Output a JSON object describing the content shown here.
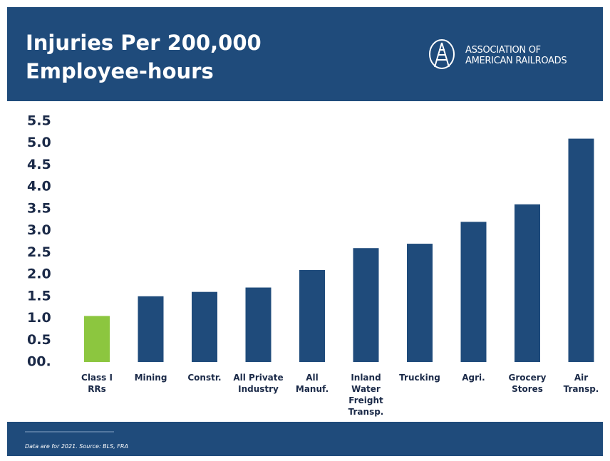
{
  "chart_data": {
    "type": "bar",
    "title": "Injuries Per 200,000\nEmployee-hours",
    "logo_text": "ASSOCIATION OF\nAMERICAN RAILROADS",
    "footnote": "Data are for 2021. Source: BLS, FRA",
    "categories": [
      "Class I\nRRs",
      "Mining",
      "Constr.",
      "All Private\nIndustry",
      "All\nManuf.",
      "Inland\nWater\nFreight\nTransp.",
      "Trucking",
      "Agri.",
      "Grocery\nStores",
      "Air\nTransp."
    ],
    "values": [
      1.05,
      1.5,
      1.6,
      1.7,
      2.1,
      2.6,
      2.7,
      3.2,
      3.6,
      5.1
    ],
    "colors": [
      "#8cc63f",
      "#1f4b7b",
      "#1f4b7b",
      "#1f4b7b",
      "#1f4b7b",
      "#1f4b7b",
      "#1f4b7b",
      "#1f4b7b",
      "#1f4b7b",
      "#1f4b7b"
    ],
    "ylim": [
      0,
      5.5
    ],
    "yticks": [
      {
        "value": 0,
        "label": "00."
      },
      0.5,
      {
        "value": 1,
        "label": "1.0"
      },
      1.5,
      {
        "value": 2,
        "label": "2.0"
      },
      2.5,
      {
        "value": 3,
        "label": "3.0"
      },
      3.5,
      {
        "value": 4,
        "label": "4.0"
      },
      4.5,
      {
        "value": 5,
        "label": "5.0"
      },
      5.5
    ],
    "grid": false
  }
}
